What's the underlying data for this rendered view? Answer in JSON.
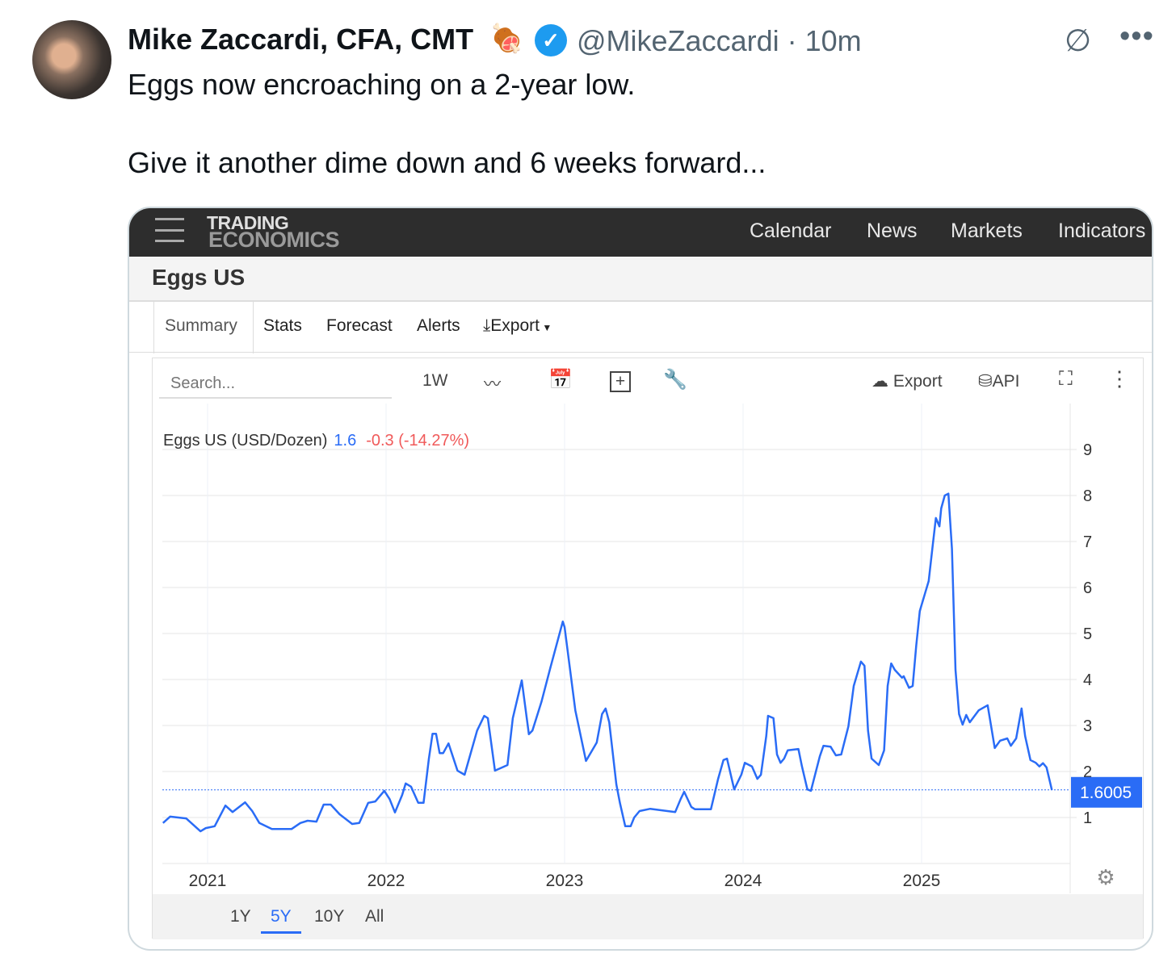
{
  "tweet": {
    "author": "Mike Zaccardi, CFA, CMT",
    "emoji": "🍖",
    "handle": "@MikeZaccardi",
    "time_sep": "·",
    "time": "10m",
    "lines": [
      "Eggs now encroaching on a 2-year low.",
      "Give it another dime down and 6 weeks forward..."
    ],
    "icons": {
      "verified": "verified-badge-icon",
      "grok": "grok-icon",
      "more": "more-icon"
    }
  },
  "site": {
    "logo_top": "TRADING",
    "logo_bottom": "ECONOMICS",
    "nav": [
      "Calendar",
      "News",
      "Markets",
      "Indicators"
    ],
    "page_title": "Eggs US",
    "tabs": [
      "Summary",
      "Stats",
      "Forecast",
      "Alerts",
      "Export"
    ],
    "active_tab": "Summary"
  },
  "toolbar": {
    "search_placeholder": "Search...",
    "interval": "1W",
    "export": "Export",
    "api": "API"
  },
  "ranges": [
    "1Y",
    "5Y",
    "10Y",
    "All"
  ],
  "active_range": "5Y",
  "colors": {
    "line": "#2a6cf6",
    "negative": "#f05a5a",
    "header": "#2d2d2d"
  },
  "chart_data": {
    "type": "line",
    "title": "Eggs US (USD/Dozen)",
    "last_value_short": "1.6",
    "change": "-0.3 (-14.27%)",
    "last_value": "1.6005",
    "x_ticks": [
      "2021",
      "2022",
      "2023",
      "2024",
      "2025"
    ],
    "y_ticks": [
      1,
      2,
      3,
      4,
      5,
      6,
      7,
      8,
      9
    ],
    "y_axis": "right",
    "ylim": [
      0,
      9.8
    ],
    "xlim": [
      2020.75,
      2025.85
    ],
    "grid": true,
    "series": [
      {
        "points": [
          [
            2020.75,
            0.88
          ],
          [
            2020.79,
            1.02
          ],
          [
            2020.88,
            0.98
          ],
          [
            2020.96,
            0.7
          ],
          [
            2020.99,
            0.77
          ],
          [
            2021.04,
            0.81
          ],
          [
            2021.1,
            1.26
          ],
          [
            2021.14,
            1.12
          ],
          [
            2021.21,
            1.33
          ],
          [
            2021.25,
            1.14
          ],
          [
            2021.29,
            0.88
          ],
          [
            2021.36,
            0.75
          ],
          [
            2021.47,
            0.75
          ],
          [
            2021.52,
            0.88
          ],
          [
            2021.56,
            0.93
          ],
          [
            2021.61,
            0.91
          ],
          [
            2021.65,
            1.28
          ],
          [
            2021.69,
            1.28
          ],
          [
            2021.74,
            1.07
          ],
          [
            2021.81,
            0.86
          ],
          [
            2021.85,
            0.88
          ],
          [
            2021.9,
            1.32
          ],
          [
            2021.94,
            1.35
          ],
          [
            2021.99,
            1.58
          ],
          [
            2022.02,
            1.4
          ],
          [
            2022.05,
            1.11
          ],
          [
            2022.09,
            1.49
          ],
          [
            2022.11,
            1.74
          ],
          [
            2022.14,
            1.67
          ],
          [
            2022.18,
            1.32
          ],
          [
            2022.21,
            1.32
          ],
          [
            2022.24,
            2.28
          ],
          [
            2022.26,
            2.82
          ],
          [
            2022.28,
            2.82
          ],
          [
            2022.3,
            2.4
          ],
          [
            2022.32,
            2.4
          ],
          [
            2022.35,
            2.61
          ],
          [
            2022.4,
            2.02
          ],
          [
            2022.44,
            1.93
          ],
          [
            2022.51,
            2.89
          ],
          [
            2022.55,
            3.21
          ],
          [
            2022.57,
            3.16
          ],
          [
            2022.61,
            2.02
          ],
          [
            2022.64,
            2.07
          ],
          [
            2022.68,
            2.14
          ],
          [
            2022.71,
            3.16
          ],
          [
            2022.76,
            3.98
          ],
          [
            2022.8,
            2.81
          ],
          [
            2022.82,
            2.89
          ],
          [
            2022.87,
            3.51
          ],
          [
            2022.92,
            4.25
          ],
          [
            2022.99,
            5.26
          ],
          [
            2023.0,
            5.14
          ],
          [
            2023.06,
            3.33
          ],
          [
            2023.12,
            2.23
          ],
          [
            2023.18,
            2.63
          ],
          [
            2023.21,
            3.25
          ],
          [
            2023.23,
            3.37
          ],
          [
            2023.25,
            3.07
          ],
          [
            2023.29,
            1.72
          ],
          [
            2023.31,
            1.32
          ],
          [
            2023.34,
            0.81
          ],
          [
            2023.37,
            0.81
          ],
          [
            2023.39,
            1.0
          ],
          [
            2023.42,
            1.14
          ],
          [
            2023.48,
            1.19
          ],
          [
            2023.62,
            1.12
          ],
          [
            2023.65,
            1.4
          ],
          [
            2023.67,
            1.56
          ],
          [
            2023.71,
            1.23
          ],
          [
            2023.73,
            1.18
          ],
          [
            2023.82,
            1.18
          ],
          [
            2023.86,
            1.84
          ],
          [
            2023.89,
            2.25
          ],
          [
            2023.91,
            2.28
          ],
          [
            2023.95,
            1.61
          ],
          [
            2023.99,
            1.93
          ],
          [
            2024.01,
            2.19
          ],
          [
            2024.05,
            2.11
          ],
          [
            2024.08,
            1.84
          ],
          [
            2024.1,
            1.93
          ],
          [
            2024.13,
            2.77
          ],
          [
            2024.14,
            3.21
          ],
          [
            2024.17,
            3.16
          ],
          [
            2024.19,
            2.37
          ],
          [
            2024.21,
            2.19
          ],
          [
            2024.23,
            2.28
          ],
          [
            2024.25,
            2.46
          ],
          [
            2024.31,
            2.49
          ],
          [
            2024.33,
            2.11
          ],
          [
            2024.36,
            1.61
          ],
          [
            2024.38,
            1.58
          ],
          [
            2024.43,
            2.33
          ],
          [
            2024.45,
            2.56
          ],
          [
            2024.49,
            2.54
          ],
          [
            2024.52,
            2.35
          ],
          [
            2024.55,
            2.37
          ],
          [
            2024.59,
            2.98
          ],
          [
            2024.62,
            3.86
          ],
          [
            2024.66,
            4.39
          ],
          [
            2024.68,
            4.3
          ],
          [
            2024.7,
            2.89
          ],
          [
            2024.72,
            2.28
          ],
          [
            2024.76,
            2.14
          ],
          [
            2024.79,
            2.46
          ],
          [
            2024.81,
            3.86
          ],
          [
            2024.83,
            4.35
          ],
          [
            2024.85,
            4.21
          ],
          [
            2024.89,
            4.04
          ],
          [
            2024.9,
            4.07
          ],
          [
            2024.93,
            3.82
          ],
          [
            2024.95,
            3.86
          ],
          [
            2024.97,
            4.74
          ],
          [
            2024.99,
            5.49
          ],
          [
            2025.02,
            5.88
          ],
          [
            2025.04,
            6.14
          ],
          [
            2025.06,
            6.84
          ],
          [
            2025.08,
            7.51
          ],
          [
            2025.1,
            7.33
          ],
          [
            2025.11,
            7.72
          ],
          [
            2025.13,
            8.0
          ],
          [
            2025.15,
            8.04
          ],
          [
            2025.17,
            6.84
          ],
          [
            2025.19,
            4.21
          ],
          [
            2025.21,
            3.25
          ],
          [
            2025.23,
            3.02
          ],
          [
            2025.25,
            3.23
          ],
          [
            2025.27,
            3.07
          ],
          [
            2025.32,
            3.33
          ],
          [
            2025.37,
            3.44
          ],
          [
            2025.41,
            2.51
          ],
          [
            2025.44,
            2.67
          ],
          [
            2025.48,
            2.72
          ],
          [
            2025.5,
            2.56
          ],
          [
            2025.53,
            2.72
          ],
          [
            2025.56,
            3.37
          ],
          [
            2025.58,
            2.77
          ],
          [
            2025.61,
            2.25
          ],
          [
            2025.64,
            2.19
          ],
          [
            2025.66,
            2.11
          ],
          [
            2025.68,
            2.18
          ],
          [
            2025.7,
            2.09
          ],
          [
            2025.73,
            1.6
          ]
        ]
      }
    ]
  }
}
